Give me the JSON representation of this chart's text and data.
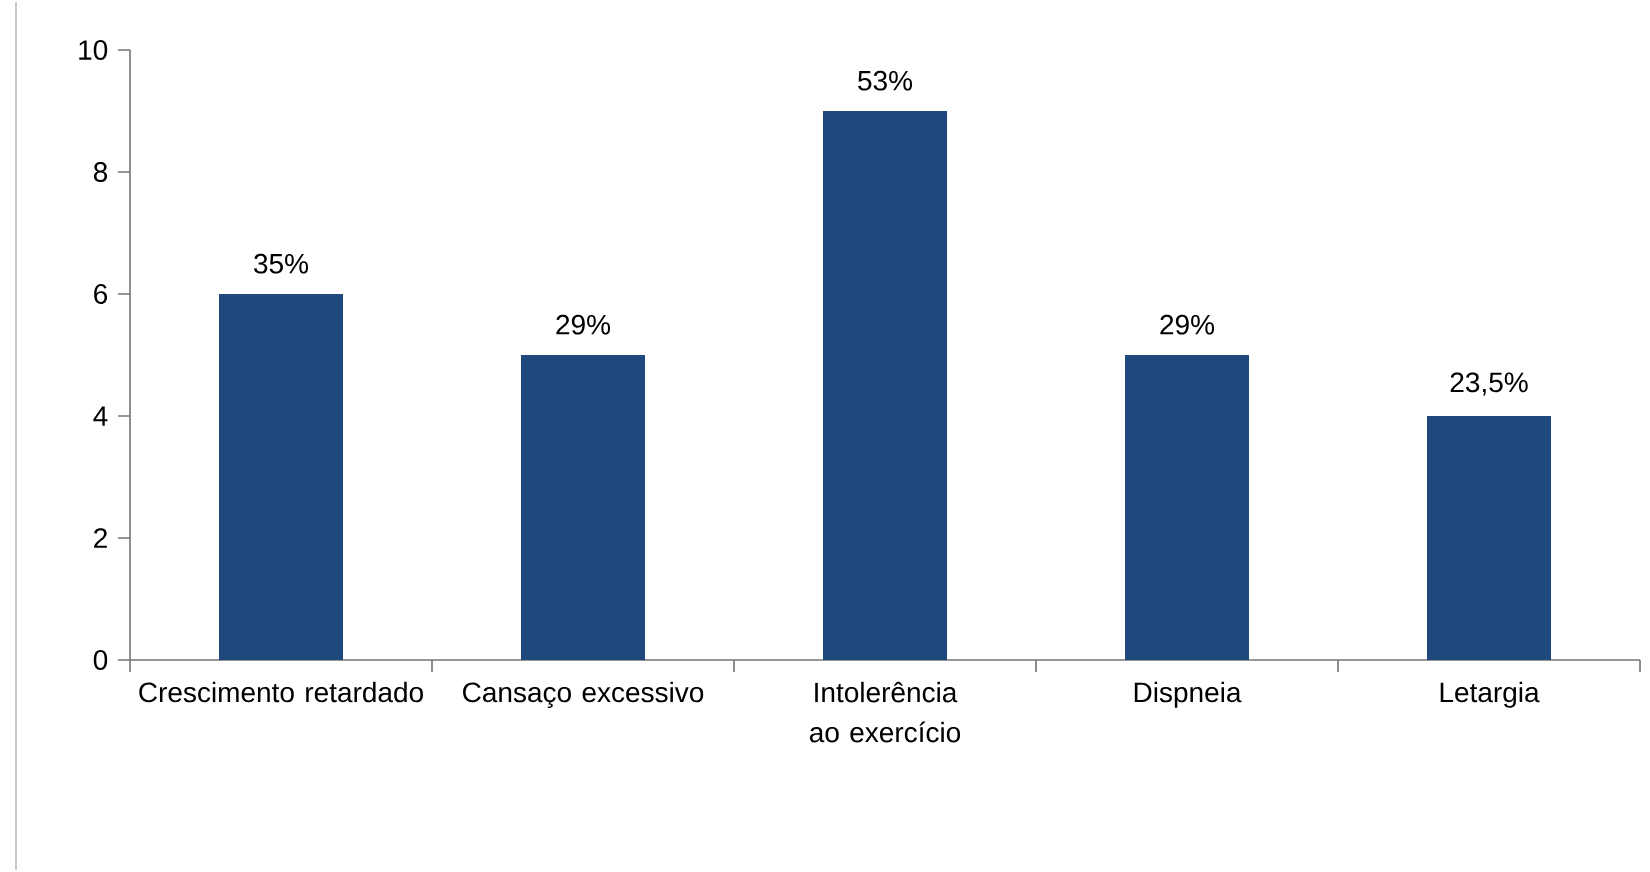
{
  "chart_data": {
    "type": "bar",
    "categories": [
      "Crescimento retardado",
      "Cansaço excessivo",
      "Intolerência ao exercício",
      "Dispneia",
      "Letargia"
    ],
    "values": [
      6,
      5,
      9,
      5,
      4
    ],
    "annotations": [
      {
        "text": "35%",
        "x": "Crescimento retardado",
        "y": 6
      },
      {
        "text": "29%",
        "x": "Cansaço excessivo",
        "y": 5
      },
      {
        "text": "53%",
        "x": "Intolerência ao exercício",
        "y": 9
      },
      {
        "text": "29%",
        "x": "Dispneia",
        "y": 5
      },
      {
        "text": "23,5%",
        "x": "Letargia",
        "y": 4
      }
    ],
    "color": "#1f497d",
    "ylim": [
      0,
      10
    ],
    "yticks": [
      0,
      2,
      4,
      6,
      8,
      10
    ],
    "grid": false
  }
}
